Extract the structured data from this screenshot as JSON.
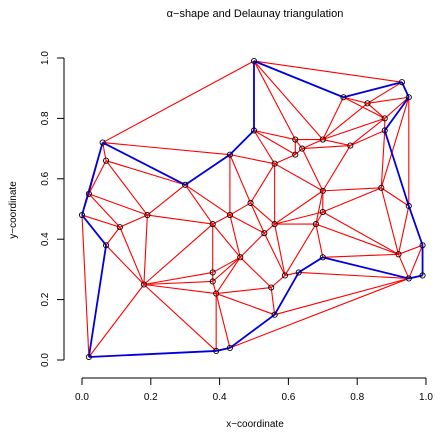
{
  "chart_data": {
    "type": "scatter",
    "title": "α−shape and Delaunay triangulation",
    "xlabel": "x−coordinate",
    "ylabel": "y−coordinate",
    "xlim": [
      0,
      1
    ],
    "ylim": [
      0,
      1
    ],
    "xticks": [
      "0.0",
      "0.2",
      "0.4",
      "0.6",
      "0.8",
      "1.0"
    ],
    "yticks": [
      "0.0",
      "0.2",
      "0.4",
      "0.6",
      "0.8",
      "1.0"
    ],
    "colors": {
      "delaunay": "#ff0000",
      "alpha_shape": "#0000dd",
      "points": "#000000"
    },
    "points": [
      [
        0.5,
        0.99
      ],
      [
        0.93,
        0.92
      ],
      [
        0.95,
        0.87
      ],
      [
        0.76,
        0.87
      ],
      [
        0.83,
        0.85
      ],
      [
        0.88,
        0.8
      ],
      [
        0.88,
        0.76
      ],
      [
        0.5,
        0.76
      ],
      [
        0.06,
        0.72
      ],
      [
        0.78,
        0.71
      ],
      [
        0.62,
        0.73
      ],
      [
        0.7,
        0.73
      ],
      [
        0.43,
        0.68
      ],
      [
        0.62,
        0.68
      ],
      [
        0.64,
        0.7
      ],
      [
        0.07,
        0.66
      ],
      [
        0.56,
        0.65
      ],
      [
        0.3,
        0.58
      ],
      [
        0.7,
        0.56
      ],
      [
        0.87,
        0.57
      ],
      [
        0.02,
        0.55
      ],
      [
        0.49,
        0.52
      ],
      [
        0.95,
        0.51
      ],
      [
        0.0,
        0.48
      ],
      [
        0.19,
        0.48
      ],
      [
        0.43,
        0.48
      ],
      [
        0.7,
        0.49
      ],
      [
        0.56,
        0.45
      ],
      [
        0.38,
        0.45
      ],
      [
        0.68,
        0.45
      ],
      [
        0.11,
        0.44
      ],
      [
        0.53,
        0.42
      ],
      [
        0.99,
        0.38
      ],
      [
        0.07,
        0.38
      ],
      [
        0.46,
        0.34
      ],
      [
        0.7,
        0.34
      ],
      [
        0.92,
        0.35
      ],
      [
        0.38,
        0.29
      ],
      [
        0.59,
        0.28
      ],
      [
        0.63,
        0.29
      ],
      [
        0.99,
        0.28
      ],
      [
        0.38,
        0.26
      ],
      [
        0.95,
        0.27
      ],
      [
        0.55,
        0.24
      ],
      [
        0.18,
        0.25
      ],
      [
        0.39,
        0.22
      ],
      [
        0.56,
        0.15
      ],
      [
        0.39,
        0.03
      ],
      [
        0.43,
        0.04
      ],
      [
        0.02,
        0.01
      ]
    ],
    "delaunay_edges": [
      [
        0,
        8
      ],
      [
        0,
        7
      ],
      [
        0,
        3
      ],
      [
        0,
        1
      ],
      [
        0,
        10
      ],
      [
        0,
        11
      ],
      [
        1,
        3
      ],
      [
        1,
        2
      ],
      [
        1,
        4
      ],
      [
        2,
        4
      ],
      [
        2,
        5
      ],
      [
        3,
        4
      ],
      [
        3,
        5
      ],
      [
        3,
        11
      ],
      [
        4,
        5
      ],
      [
        5,
        6
      ],
      [
        5,
        9
      ],
      [
        5,
        11
      ],
      [
        4,
        11
      ],
      [
        7,
        12
      ],
      [
        7,
        10
      ],
      [
        7,
        13
      ],
      [
        7,
        16
      ],
      [
        8,
        12
      ],
      [
        8,
        15
      ],
      [
        8,
        17
      ],
      [
        8,
        20
      ],
      [
        10,
        11
      ],
      [
        10,
        14
      ],
      [
        10,
        13
      ],
      [
        11,
        14
      ],
      [
        11,
        9
      ],
      [
        13,
        14
      ],
      [
        13,
        16
      ],
      [
        14,
        18
      ],
      [
        14,
        9
      ],
      [
        9,
        18
      ],
      [
        9,
        6
      ],
      [
        12,
        16
      ],
      [
        12,
        21
      ],
      [
        12,
        17
      ],
      [
        12,
        25
      ],
      [
        15,
        17
      ],
      [
        15,
        20
      ],
      [
        15,
        24
      ],
      [
        16,
        21
      ],
      [
        16,
        18
      ],
      [
        16,
        27
      ],
      [
        17,
        24
      ],
      [
        17,
        28
      ],
      [
        17,
        25
      ],
      [
        6,
        19
      ],
      [
        6,
        2
      ],
      [
        18,
        19
      ],
      [
        18,
        26
      ],
      [
        18,
        27
      ],
      [
        19,
        22
      ],
      [
        2,
        22
      ],
      [
        2,
        19
      ],
      [
        19,
        26
      ],
      [
        19,
        36
      ],
      [
        20,
        23
      ],
      [
        20,
        30
      ],
      [
        20,
        24
      ],
      [
        21,
        25
      ],
      [
        21,
        27
      ],
      [
        21,
        31
      ],
      [
        22,
        32
      ],
      [
        22,
        36
      ],
      [
        23,
        30
      ],
      [
        23,
        33
      ],
      [
        23,
        49
      ],
      [
        24,
        30
      ],
      [
        24,
        28
      ],
      [
        24,
        44
      ],
      [
        25,
        28
      ],
      [
        25,
        34
      ],
      [
        25,
        31
      ],
      [
        26,
        27
      ],
      [
        26,
        29
      ],
      [
        26,
        36
      ],
      [
        27,
        29
      ],
      [
        27,
        31
      ],
      [
        27,
        38
      ],
      [
        28,
        34
      ],
      [
        28,
        37
      ],
      [
        28,
        44
      ],
      [
        29,
        35
      ],
      [
        29,
        38
      ],
      [
        29,
        36
      ],
      [
        30,
        33
      ],
      [
        30,
        44
      ],
      [
        31,
        34
      ],
      [
        31,
        38
      ],
      [
        32,
        36
      ],
      [
        32,
        40
      ],
      [
        32,
        42
      ],
      [
        33,
        44
      ],
      [
        33,
        49
      ],
      [
        34,
        37
      ],
      [
        34,
        43
      ],
      [
        34,
        45
      ],
      [
        35,
        36
      ],
      [
        35,
        39
      ],
      [
        35,
        42
      ],
      [
        36,
        42
      ],
      [
        37,
        44
      ],
      [
        37,
        41
      ],
      [
        38,
        43
      ],
      [
        38,
        39
      ],
      [
        39,
        42
      ],
      [
        39,
        46
      ],
      [
        40,
        42
      ],
      [
        41,
        44
      ],
      [
        41,
        45
      ],
      [
        42,
        46
      ],
      [
        42,
        48
      ],
      [
        43,
        46
      ],
      [
        43,
        45
      ],
      [
        45,
        47
      ],
      [
        45,
        48
      ],
      [
        45,
        44
      ],
      [
        44,
        47
      ],
      [
        44,
        49
      ],
      [
        46,
        48
      ],
      [
        47,
        49
      ],
      [
        46,
        45
      ],
      [
        41,
        34
      ],
      [
        18,
        29
      ]
    ],
    "alpha_edges": [
      [
        0,
        7
      ],
      [
        0,
        3
      ],
      [
        3,
        1
      ],
      [
        1,
        2
      ],
      [
        2,
        6
      ],
      [
        6,
        22
      ],
      [
        22,
        32
      ],
      [
        32,
        40
      ],
      [
        40,
        42
      ],
      [
        42,
        35
      ],
      [
        35,
        39
      ],
      [
        39,
        46
      ],
      [
        46,
        48
      ],
      [
        48,
        47
      ],
      [
        47,
        49
      ],
      [
        49,
        33
      ],
      [
        33,
        23
      ],
      [
        23,
        8
      ],
      [
        8,
        17
      ],
      [
        17,
        12
      ],
      [
        12,
        7
      ]
    ]
  }
}
